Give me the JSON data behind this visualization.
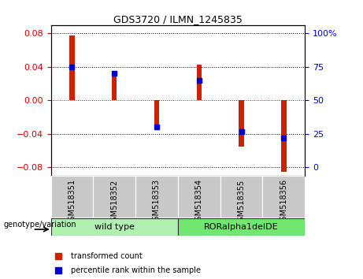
{
  "title": "GDS3720 / ILMN_1245835",
  "samples": [
    "GSM518351",
    "GSM518352",
    "GSM518353",
    "GSM518354",
    "GSM518355",
    "GSM518356"
  ],
  "red_bars": [
    0.078,
    0.03,
    -0.035,
    0.043,
    -0.055,
    -0.085
  ],
  "blue_markers_pct": [
    75,
    70,
    30,
    65,
    27,
    22
  ],
  "ylim": [
    -0.09,
    0.09
  ],
  "yticks_left": [
    -0.08,
    -0.04,
    0,
    0.04,
    0.08
  ],
  "yticks_right": [
    0,
    25,
    50,
    75,
    100
  ],
  "ylabel_left_color": "#cc0000",
  "ylabel_right_color": "#0000cc",
  "bar_color": "#cc2200",
  "marker_color": "#0000cc",
  "genotype_label": "genotype/variation",
  "legend_items": [
    {
      "label": "transformed count",
      "color": "#cc2200"
    },
    {
      "label": "percentile rank within the sample",
      "color": "#0000cc"
    }
  ],
  "bg_color": "#ffffff",
  "tick_area_bg": "#c8c8c8",
  "bar_width": 0.12,
  "zero_line_color": "#cc0000",
  "wt_color": "#b0f0b0",
  "ror_color": "#70e870"
}
